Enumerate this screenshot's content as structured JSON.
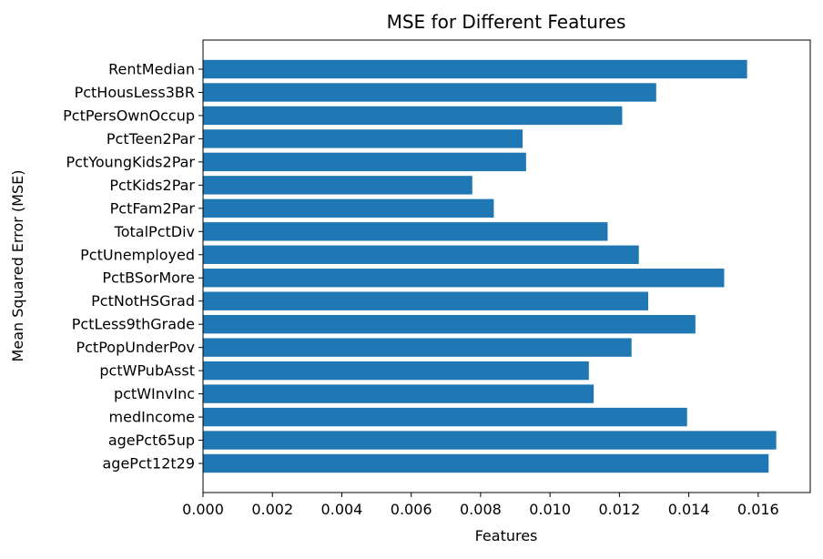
{
  "chart_data": {
    "type": "bar",
    "orientation": "horizontal",
    "title": "MSE for Different Features",
    "xlabel": "Features",
    "ylabel": "Mean Squared Error (MSE)",
    "bar_color": "#1f77b4",
    "xlim": [
      0,
      0.0175
    ],
    "xticks": [
      "0.000",
      "0.002",
      "0.004",
      "0.006",
      "0.008",
      "0.010",
      "0.012",
      "0.014",
      "0.016"
    ],
    "grid": false,
    "categories": [
      "agePct12t29",
      "agePct65up",
      "medIncome",
      "pctWInvInc",
      "pctWPubAsst",
      "PctPopUnderPov",
      "PctLess9thGrade",
      "PctNotHSGrad",
      "PctBSorMore",
      "PctUnemployed",
      "TotalPctDiv",
      "PctFam2Par",
      "PctKids2Par",
      "PctYoungKids2Par",
      "PctTeen2Par",
      "PctPersOwnOccup",
      "PctHousLess3BR",
      "RentMedian"
    ],
    "values": [
      0.0163,
      0.01652,
      0.01395,
      0.01126,
      0.01112,
      0.01235,
      0.01419,
      0.01283,
      0.01502,
      0.01256,
      0.01166,
      0.00838,
      0.00776,
      0.00931,
      0.00921,
      0.01208,
      0.01306,
      0.01568
    ]
  }
}
